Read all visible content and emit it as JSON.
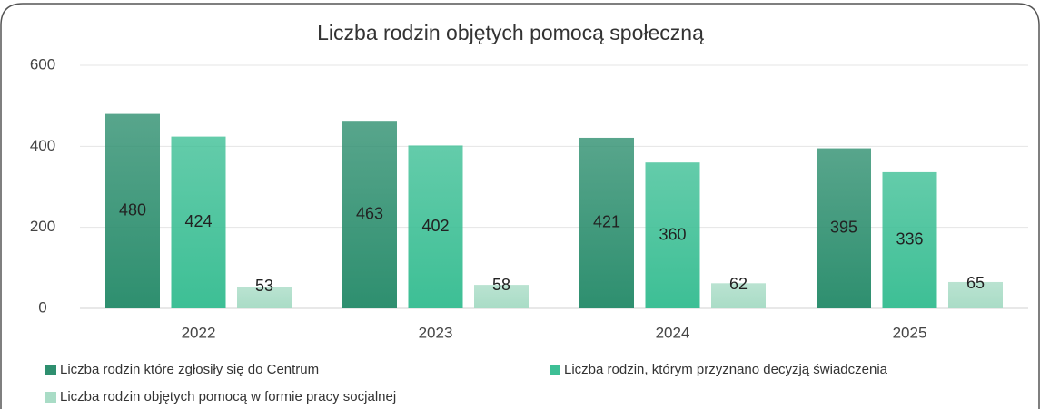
{
  "chart_data": {
    "type": "bar",
    "title": "Liczba rodzin objętych pomocą społeczną",
    "categories": [
      "2022",
      "2023",
      "2024",
      "2025"
    ],
    "series": [
      {
        "name": "Liczba rodzin które zgłosiły się do Centrum",
        "color": "#2e8f6f",
        "values": [
          480,
          463,
          421,
          395
        ]
      },
      {
        "name": "Liczba rodzin, którym przyznano decyzją świadczenia",
        "color": "#3dbf95",
        "values": [
          424,
          402,
          360,
          336
        ]
      },
      {
        "name": "Liczba rodzin objętych pomocą w formie pracy socjalnej",
        "color": "#a9dcc6",
        "values": [
          53,
          58,
          62,
          65
        ]
      }
    ],
    "ylim": [
      0,
      600
    ],
    "yticks": [
      0,
      200,
      400,
      600
    ],
    "grid": true,
    "legend": "bottom"
  }
}
